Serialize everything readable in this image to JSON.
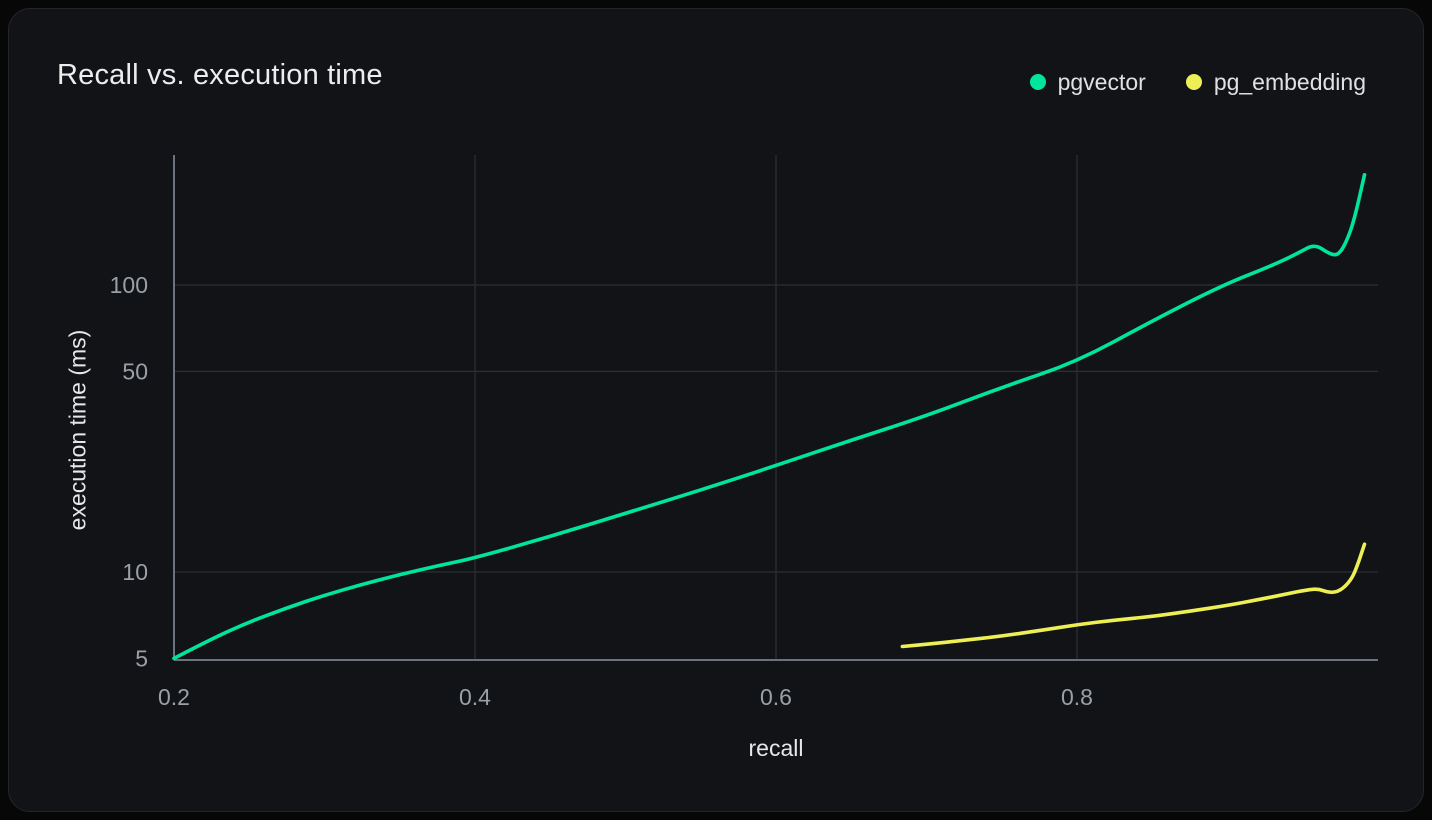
{
  "card": {
    "title": "Recall vs. execution time"
  },
  "legend": {
    "items": [
      {
        "label": "pgvector",
        "color": "#00e599"
      },
      {
        "label": "pg_embedding",
        "color": "#edef55"
      }
    ]
  },
  "axis_titles": {
    "x": "recall",
    "y": "execution time (ms)"
  },
  "colors": {
    "page_bg": "#070708",
    "card_bg": "#121316",
    "card_border": "#24262b",
    "grid": "#2c2f34",
    "axis_line": "#6b7280",
    "tick_text": "#9aa0a8",
    "title_text": "#eceded",
    "pgvector": "#00e599",
    "pg_embedding": "#edef55"
  },
  "chart_data": {
    "type": "line",
    "title": "Recall vs. execution time",
    "xlabel": "recall",
    "ylabel": "execution time (ms)",
    "grid": true,
    "legend_position": "top-right",
    "x_axis": {
      "min": 0.2,
      "max": 1.0,
      "scale": "linear",
      "ticks": [
        0.2,
        0.4,
        0.6,
        0.8
      ],
      "tick_labels": [
        "0.2",
        "0.4",
        "0.6",
        "0.8"
      ],
      "gridline_ticks": [
        0.4,
        0.6,
        0.8
      ]
    },
    "y_axis": {
      "min": 4.9,
      "max": 283,
      "scale": "log",
      "unit": "ms",
      "ticks": [
        5,
        10,
        50,
        100
      ],
      "tick_labels": [
        "5",
        "10",
        "50",
        "100"
      ],
      "gridline_ticks": [
        10,
        50,
        100
      ]
    },
    "series": [
      {
        "name": "pgvector",
        "color": "#00e599",
        "points": [
          [
            0.2,
            5.0
          ],
          [
            0.225,
            5.85
          ],
          [
            0.25,
            6.7
          ],
          [
            0.275,
            7.5
          ],
          [
            0.3,
            8.3
          ],
          [
            0.325,
            9.05
          ],
          [
            0.35,
            9.8
          ],
          [
            0.375,
            10.5
          ],
          [
            0.4,
            11.2
          ],
          [
            0.45,
            13.3
          ],
          [
            0.5,
            16.0
          ],
          [
            0.55,
            19.3
          ],
          [
            0.6,
            23.5
          ],
          [
            0.65,
            28.8
          ],
          [
            0.7,
            35.0
          ],
          [
            0.75,
            44.0
          ],
          [
            0.8,
            54.0
          ],
          [
            0.85,
            75.0
          ],
          [
            0.897,
            100.0
          ],
          [
            0.93,
            117.0
          ],
          [
            0.948,
            130.0
          ],
          [
            0.958,
            139.0
          ],
          [
            0.968,
            128.0
          ],
          [
            0.974,
            127.0
          ],
          [
            0.98,
            145.0
          ],
          [
            0.985,
            175.0
          ],
          [
            0.991,
            242.0
          ]
        ]
      },
      {
        "name": "pg_embedding",
        "color": "#edef55",
        "points": [
          [
            0.684,
            5.5
          ],
          [
            0.7,
            5.6
          ],
          [
            0.725,
            5.78
          ],
          [
            0.75,
            5.98
          ],
          [
            0.775,
            6.25
          ],
          [
            0.8,
            6.55
          ],
          [
            0.825,
            6.8
          ],
          [
            0.85,
            7.0
          ],
          [
            0.875,
            7.3
          ],
          [
            0.9,
            7.65
          ],
          [
            0.92,
            8.0
          ],
          [
            0.94,
            8.4
          ],
          [
            0.952,
            8.65
          ],
          [
            0.96,
            8.75
          ],
          [
            0.968,
            8.45
          ],
          [
            0.975,
            8.6
          ],
          [
            0.982,
            9.35
          ],
          [
            0.986,
            10.4
          ],
          [
            0.991,
            12.5
          ]
        ]
      }
    ]
  }
}
